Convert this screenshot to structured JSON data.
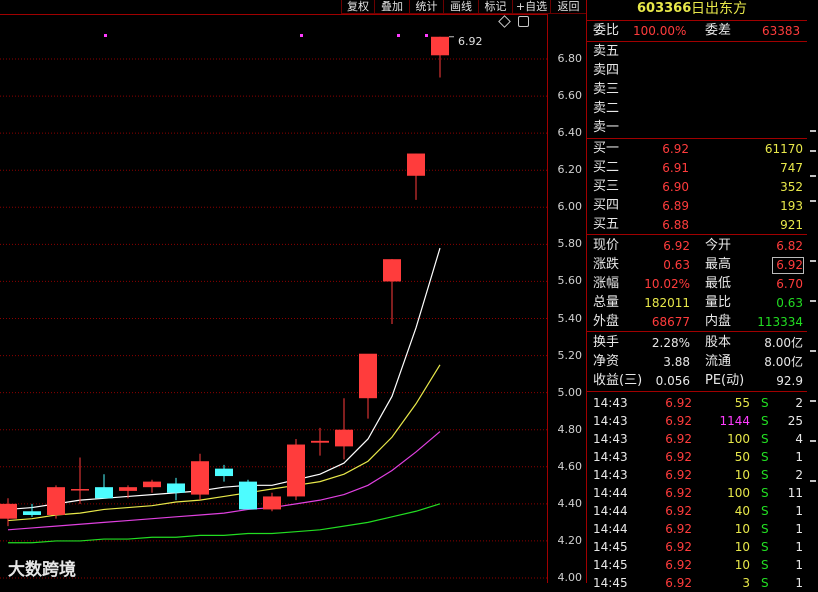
{
  "toolbar": {
    "buttons": [
      "复权",
      "叠加",
      "统计",
      "画线",
      "标记",
      "+自选",
      "返回"
    ]
  },
  "chart": {
    "last_price_marker": "6.92",
    "y_ticks": [
      "6.80",
      "6.60",
      "6.40",
      "6.20",
      "6.00",
      "5.80",
      "5.60",
      "5.40",
      "5.20",
      "5.00",
      "4.80",
      "4.60",
      "4.40",
      "4.20",
      "4.00"
    ],
    "colors": {
      "up": "#ff3c3c",
      "down": "#4dfcff",
      "ma5": "#ffffff",
      "ma10": "#e8e84a",
      "ma20": "#e040e0",
      "ma60": "#22dd22",
      "grid": "#8b0000"
    },
    "candles": [
      {
        "o": 4.32,
        "h": 4.43,
        "l": 4.28,
        "c": 4.4
      },
      {
        "o": 4.36,
        "h": 4.4,
        "l": 4.33,
        "c": 4.34
      },
      {
        "o": 4.34,
        "h": 4.5,
        "l": 4.32,
        "c": 4.49
      },
      {
        "o": 4.48,
        "h": 4.65,
        "l": 4.4,
        "c": 4.48
      },
      {
        "o": 4.49,
        "h": 4.56,
        "l": 4.43,
        "c": 4.43
      },
      {
        "o": 4.47,
        "h": 4.5,
        "l": 4.43,
        "c": 4.49
      },
      {
        "o": 4.49,
        "h": 4.53,
        "l": 4.46,
        "c": 4.52
      },
      {
        "o": 4.51,
        "h": 4.54,
        "l": 4.42,
        "c": 4.46
      },
      {
        "o": 4.45,
        "h": 4.67,
        "l": 4.42,
        "c": 4.63
      },
      {
        "o": 4.59,
        "h": 4.61,
        "l": 4.52,
        "c": 4.55
      },
      {
        "o": 4.52,
        "h": 4.53,
        "l": 4.37,
        "c": 4.37
      },
      {
        "o": 4.37,
        "h": 4.46,
        "l": 4.36,
        "c": 4.44
      },
      {
        "o": 4.44,
        "h": 4.75,
        "l": 4.42,
        "c": 4.72
      },
      {
        "o": 4.73,
        "h": 4.81,
        "l": 4.66,
        "c": 4.74
      },
      {
        "o": 4.71,
        "h": 4.97,
        "l": 4.64,
        "c": 4.8
      },
      {
        "o": 4.97,
        "h": 5.2,
        "l": 4.86,
        "c": 5.21
      },
      {
        "o": 5.6,
        "h": 5.72,
        "l": 5.37,
        "c": 5.72
      },
      {
        "o": 6.17,
        "h": 6.29,
        "l": 6.04,
        "c": 6.29
      },
      {
        "o": 6.82,
        "h": 6.92,
        "l": 6.7,
        "c": 6.92
      }
    ],
    "ma5": [
      4.37,
      4.38,
      4.4,
      4.42,
      4.43,
      4.44,
      4.45,
      4.46,
      4.47,
      4.49,
      4.5,
      4.5,
      4.53,
      4.56,
      4.62,
      4.75,
      4.98,
      5.35,
      5.78
    ],
    "ma10": [
      4.31,
      4.32,
      4.34,
      4.35,
      4.37,
      4.38,
      4.39,
      4.41,
      4.42,
      4.44,
      4.46,
      4.48,
      4.5,
      4.52,
      4.56,
      4.63,
      4.76,
      4.94,
      5.15
    ],
    "ma20": [
      4.26,
      4.27,
      4.28,
      4.29,
      4.3,
      4.31,
      4.32,
      4.33,
      4.34,
      4.35,
      4.37,
      4.38,
      4.4,
      4.42,
      4.45,
      4.5,
      4.58,
      4.68,
      4.79
    ],
    "ma60": [
      4.19,
      4.19,
      4.2,
      4.2,
      4.21,
      4.21,
      4.22,
      4.22,
      4.23,
      4.23,
      4.24,
      4.24,
      4.25,
      4.26,
      4.28,
      4.3,
      4.33,
      4.36,
      4.4
    ]
  },
  "quote": {
    "code": "603366",
    "name": "日出东方",
    "weibi_label": "委比",
    "weibi_value": "100.00%",
    "weicha_label": "委差",
    "weicha_value": "63383",
    "sell": [
      {
        "label": "卖五",
        "price": "",
        "vol": ""
      },
      {
        "label": "卖四",
        "price": "",
        "vol": ""
      },
      {
        "label": "卖三",
        "price": "",
        "vol": ""
      },
      {
        "label": "卖二",
        "price": "",
        "vol": ""
      },
      {
        "label": "卖一",
        "price": "",
        "vol": ""
      }
    ],
    "buy": [
      {
        "label": "买一",
        "price": "6.92",
        "vol": "61170"
      },
      {
        "label": "买二",
        "price": "6.91",
        "vol": "747"
      },
      {
        "label": "买三",
        "price": "6.90",
        "vol": "352"
      },
      {
        "label": "买四",
        "price": "6.89",
        "vol": "193"
      },
      {
        "label": "买五",
        "price": "6.88",
        "vol": "921"
      }
    ],
    "stats1": [
      {
        "l1": "现价",
        "v1": "6.92",
        "l2": "今开",
        "v2": "6.82"
      },
      {
        "l1": "涨跌",
        "v1": "0.63",
        "l2": "最高",
        "v2": "6.92"
      },
      {
        "l1": "涨幅",
        "v1": "10.02%",
        "l2": "最低",
        "v2": "6.70"
      },
      {
        "l1": "总量",
        "v1": "182011",
        "l2": "量比",
        "v2": "0.63"
      },
      {
        "l1": "外盘",
        "v1": "68677",
        "l2": "内盘",
        "v2": "113334"
      }
    ],
    "stats2": [
      {
        "l1": "换手",
        "v1": "2.28%",
        "l2": "股本",
        "v2": "8.00亿"
      },
      {
        "l1": "净资",
        "v1": "3.88",
        "l2": "流通",
        "v2": "8.00亿"
      },
      {
        "l1": "收益(三)",
        "v1": "0.056",
        "l2": "PE(动)",
        "v2": "92.9"
      }
    ],
    "ticks": [
      {
        "t": "14:43",
        "p": "6.92",
        "v": "55",
        "s": "S",
        "n": "2"
      },
      {
        "t": "14:43",
        "p": "6.92",
        "v": "1144",
        "s": "S",
        "n": "25"
      },
      {
        "t": "14:43",
        "p": "6.92",
        "v": "100",
        "s": "S",
        "n": "4"
      },
      {
        "t": "14:43",
        "p": "6.92",
        "v": "50",
        "s": "S",
        "n": "1"
      },
      {
        "t": "14:43",
        "p": "6.92",
        "v": "10",
        "s": "S",
        "n": "2"
      },
      {
        "t": "14:44",
        "p": "6.92",
        "v": "100",
        "s": "S",
        "n": "11"
      },
      {
        "t": "14:44",
        "p": "6.92",
        "v": "40",
        "s": "S",
        "n": "1"
      },
      {
        "t": "14:44",
        "p": "6.92",
        "v": "10",
        "s": "S",
        "n": "1"
      },
      {
        "t": "14:45",
        "p": "6.92",
        "v": "10",
        "s": "S",
        "n": "1"
      },
      {
        "t": "14:45",
        "p": "6.92",
        "v": "10",
        "s": "S",
        "n": "1"
      },
      {
        "t": "14:45",
        "p": "6.92",
        "v": "3",
        "s": "S",
        "n": "1"
      }
    ]
  },
  "watermark": "大数跨境"
}
